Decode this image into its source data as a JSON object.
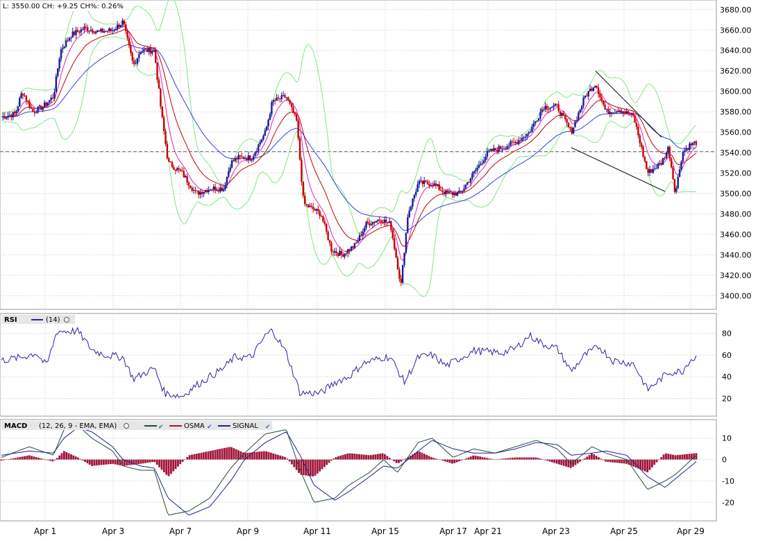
{
  "header": {
    "quote_text": "L: 3550.00 CH: +9.25 CH%: 0.26%"
  },
  "colors": {
    "up_candle": "#1a1aa0",
    "down_candle": "#cc0000",
    "ema_fast": "#e020c0",
    "ema_mid": "#c00000",
    "ema_slow": "#3040e0",
    "bollinger": "#7fe87f",
    "rsi_line": "#3020a0",
    "macd_line": "#1e4e3c",
    "signal_line": "#20208a",
    "osma_bar": "#a0143a",
    "grid": "#c8c8c8"
  },
  "panels": {
    "rsi": {
      "label": "RSI",
      "params": "(14)"
    },
    "macd": {
      "label": "MACD",
      "params": "(12, 26, 9 - EMA, EMA)",
      "legend": [
        "OSMA",
        "SIGNAL"
      ]
    }
  },
  "chart_data": [
    {
      "type": "candlestick",
      "panel": "price",
      "x_labels": [
        "Apr 1",
        "Apr 3",
        "Apr 7",
        "Apr 9",
        "Apr 11",
        "Apr 15",
        "Apr 17",
        "Apr 21",
        "Apr 23",
        "Apr 25",
        "Apr 29"
      ],
      "y_ticks": [
        3400,
        3420,
        3440,
        3460,
        3480,
        3500,
        3520,
        3540,
        3560,
        3580,
        3600,
        3620,
        3640,
        3660,
        3680
      ],
      "ylim": [
        3388,
        3688
      ],
      "reference_line": 3541,
      "close_path": [
        [
          0,
          3575
        ],
        [
          0.02,
          3578
        ],
        [
          0.03,
          3600
        ],
        [
          0.045,
          3580
        ],
        [
          0.06,
          3585
        ],
        [
          0.075,
          3595
        ],
        [
          0.085,
          3640
        ],
        [
          0.1,
          3655
        ],
        [
          0.12,
          3662
        ],
        [
          0.14,
          3658
        ],
        [
          0.16,
          3660
        ],
        [
          0.175,
          3668
        ],
        [
          0.19,
          3625
        ],
        [
          0.2,
          3640
        ],
        [
          0.22,
          3640
        ],
        [
          0.23,
          3580
        ],
        [
          0.24,
          3530
        ],
        [
          0.26,
          3520
        ],
        [
          0.28,
          3500
        ],
        [
          0.3,
          3505
        ],
        [
          0.32,
          3505
        ],
        [
          0.33,
          3530
        ],
        [
          0.34,
          3535
        ],
        [
          0.36,
          3535
        ],
        [
          0.38,
          3560
        ],
        [
          0.39,
          3590
        ],
        [
          0.41,
          3595
        ],
        [
          0.425,
          3570
        ],
        [
          0.435,
          3490
        ],
        [
          0.46,
          3480
        ],
        [
          0.475,
          3445
        ],
        [
          0.49,
          3440
        ],
        [
          0.51,
          3450
        ],
        [
          0.525,
          3470
        ],
        [
          0.545,
          3475
        ],
        [
          0.56,
          3470
        ],
        [
          0.575,
          3410
        ],
        [
          0.585,
          3480
        ],
        [
          0.6,
          3510
        ],
        [
          0.62,
          3510
        ],
        [
          0.64,
          3500
        ],
        [
          0.66,
          3500
        ],
        [
          0.68,
          3520
        ],
        [
          0.7,
          3540
        ],
        [
          0.72,
          3545
        ],
        [
          0.74,
          3550
        ],
        [
          0.76,
          3560
        ],
        [
          0.78,
          3585
        ],
        [
          0.8,
          3585
        ],
        [
          0.82,
          3560
        ],
        [
          0.84,
          3595
        ],
        [
          0.855,
          3608
        ],
        [
          0.87,
          3580
        ],
        [
          0.89,
          3582
        ],
        [
          0.91,
          3575
        ],
        [
          0.93,
          3520
        ],
        [
          0.95,
          3530
        ],
        [
          0.96,
          3545
        ],
        [
          0.97,
          3500
        ],
        [
          0.98,
          3540
        ],
        [
          0.99,
          3547
        ],
        [
          1.0,
          3550
        ]
      ],
      "trendlines": [
        [
          [
            0.855,
            3620
          ],
          [
            0.95,
            3555
          ]
        ],
        [
          [
            0.82,
            3545
          ],
          [
            0.955,
            3502
          ]
        ]
      ]
    },
    {
      "type": "line",
      "panel": "rsi",
      "y_ticks": [
        20,
        40,
        60,
        80
      ],
      "ylim": [
        5,
        97
      ],
      "values_path": [
        [
          0,
          55
        ],
        [
          0.03,
          58
        ],
        [
          0.05,
          62
        ],
        [
          0.065,
          50
        ],
        [
          0.08,
          82
        ],
        [
          0.11,
          82
        ],
        [
          0.13,
          65
        ],
        [
          0.15,
          60
        ],
        [
          0.175,
          58
        ],
        [
          0.19,
          38
        ],
        [
          0.22,
          48
        ],
        [
          0.235,
          25
        ],
        [
          0.26,
          22
        ],
        [
          0.28,
          32
        ],
        [
          0.3,
          40
        ],
        [
          0.32,
          48
        ],
        [
          0.335,
          58
        ],
        [
          0.36,
          58
        ],
        [
          0.38,
          78
        ],
        [
          0.39,
          83
        ],
        [
          0.41,
          62
        ],
        [
          0.43,
          25
        ],
        [
          0.46,
          25
        ],
        [
          0.48,
          35
        ],
        [
          0.5,
          40
        ],
        [
          0.52,
          52
        ],
        [
          0.55,
          58
        ],
        [
          0.56,
          58
        ],
        [
          0.58,
          35
        ],
        [
          0.6,
          58
        ],
        [
          0.62,
          60
        ],
        [
          0.64,
          50
        ],
        [
          0.66,
          57
        ],
        [
          0.68,
          64
        ],
        [
          0.7,
          63
        ],
        [
          0.72,
          62
        ],
        [
          0.74,
          66
        ],
        [
          0.76,
          78
        ],
        [
          0.78,
          70
        ],
        [
          0.8,
          66
        ],
        [
          0.82,
          45
        ],
        [
          0.84,
          60
        ],
        [
          0.86,
          68
        ],
        [
          0.88,
          55
        ],
        [
          0.91,
          52
        ],
        [
          0.93,
          28
        ],
        [
          0.96,
          44
        ],
        [
          0.98,
          45
        ],
        [
          0.99,
          55
        ],
        [
          1.0,
          58
        ]
      ]
    },
    {
      "type": "line",
      "panel": "macd",
      "y_ticks": [
        -20,
        -10,
        0,
        10
      ],
      "ylim": [
        -28,
        18
      ],
      "series": [
        {
          "name": "",
          "values_path": [
            [
              0,
              1
            ],
            [
              0.04,
              6
            ],
            [
              0.075,
              2
            ],
            [
              0.09,
              14
            ],
            [
              0.11,
              16
            ],
            [
              0.13,
              10
            ],
            [
              0.16,
              4
            ],
            [
              0.175,
              -3
            ],
            [
              0.2,
              -5
            ],
            [
              0.22,
              -5
            ],
            [
              0.24,
              -26
            ],
            [
              0.27,
              -24
            ],
            [
              0.3,
              -18
            ],
            [
              0.33,
              -4
            ],
            [
              0.35,
              3
            ],
            [
              0.38,
              12
            ],
            [
              0.41,
              14
            ],
            [
              0.43,
              -5
            ],
            [
              0.45,
              -20
            ],
            [
              0.48,
              -18
            ],
            [
              0.5,
              -12
            ],
            [
              0.53,
              -6
            ],
            [
              0.55,
              0
            ],
            [
              0.57,
              -6
            ],
            [
              0.6,
              8
            ],
            [
              0.62,
              10
            ],
            [
              0.65,
              1
            ],
            [
              0.68,
              5
            ],
            [
              0.71,
              3
            ],
            [
              0.74,
              6
            ],
            [
              0.77,
              9
            ],
            [
              0.8,
              5
            ],
            [
              0.82,
              -2
            ],
            [
              0.85,
              6
            ],
            [
              0.87,
              3
            ],
            [
              0.9,
              0
            ],
            [
              0.93,
              -14
            ],
            [
              0.955,
              -10
            ],
            [
              0.97,
              -7
            ],
            [
              1.0,
              2
            ]
          ]
        },
        {
          "name": "SIGNAL",
          "values_path": [
            [
              0,
              2
            ],
            [
              0.04,
              4
            ],
            [
              0.075,
              3
            ],
            [
              0.09,
              10
            ],
            [
              0.11,
              15
            ],
            [
              0.13,
              13
            ],
            [
              0.16,
              6
            ],
            [
              0.175,
              0
            ],
            [
              0.2,
              -3
            ],
            [
              0.22,
              -4
            ],
            [
              0.24,
              -18
            ],
            [
              0.27,
              -26
            ],
            [
              0.3,
              -22
            ],
            [
              0.33,
              -10
            ],
            [
              0.35,
              0
            ],
            [
              0.38,
              8
            ],
            [
              0.41,
              13
            ],
            [
              0.43,
              2
            ],
            [
              0.45,
              -12
            ],
            [
              0.48,
              -19
            ],
            [
              0.5,
              -15
            ],
            [
              0.53,
              -8
            ],
            [
              0.55,
              -3
            ],
            [
              0.57,
              -4
            ],
            [
              0.6,
              4
            ],
            [
              0.62,
              9
            ],
            [
              0.65,
              5
            ],
            [
              0.68,
              3
            ],
            [
              0.71,
              3
            ],
            [
              0.74,
              5
            ],
            [
              0.77,
              8
            ],
            [
              0.8,
              7
            ],
            [
              0.82,
              2
            ],
            [
              0.85,
              3
            ],
            [
              0.87,
              4
            ],
            [
              0.9,
              2
            ],
            [
              0.93,
              -8
            ],
            [
              0.955,
              -13
            ],
            [
              0.97,
              -9
            ],
            [
              1.0,
              -1
            ]
          ]
        }
      ],
      "osma_path": [
        [
          0,
          -0.5
        ],
        [
          0.04,
          2
        ],
        [
          0.075,
          -1
        ],
        [
          0.09,
          4
        ],
        [
          0.11,
          1
        ],
        [
          0.13,
          -3
        ],
        [
          0.16,
          -2
        ],
        [
          0.175,
          -3
        ],
        [
          0.2,
          -2
        ],
        [
          0.22,
          -1
        ],
        [
          0.24,
          -8
        ],
        [
          0.27,
          2
        ],
        [
          0.3,
          4
        ],
        [
          0.33,
          6
        ],
        [
          0.35,
          3
        ],
        [
          0.38,
          4
        ],
        [
          0.41,
          1
        ],
        [
          0.43,
          -7
        ],
        [
          0.45,
          -8
        ],
        [
          0.48,
          1
        ],
        [
          0.5,
          3
        ],
        [
          0.53,
          2
        ],
        [
          0.55,
          3
        ],
        [
          0.57,
          -2
        ],
        [
          0.6,
          4
        ],
        [
          0.62,
          1
        ],
        [
          0.65,
          -2
        ],
        [
          0.68,
          2
        ],
        [
          0.71,
          0
        ],
        [
          0.74,
          1
        ],
        [
          0.77,
          1
        ],
        [
          0.8,
          -2
        ],
        [
          0.82,
          -4
        ],
        [
          0.85,
          3
        ],
        [
          0.87,
          -1
        ],
        [
          0.9,
          -2
        ],
        [
          0.93,
          -6
        ],
        [
          0.955,
          3
        ],
        [
          0.97,
          2
        ],
        [
          1.0,
          3
        ]
      ]
    }
  ]
}
